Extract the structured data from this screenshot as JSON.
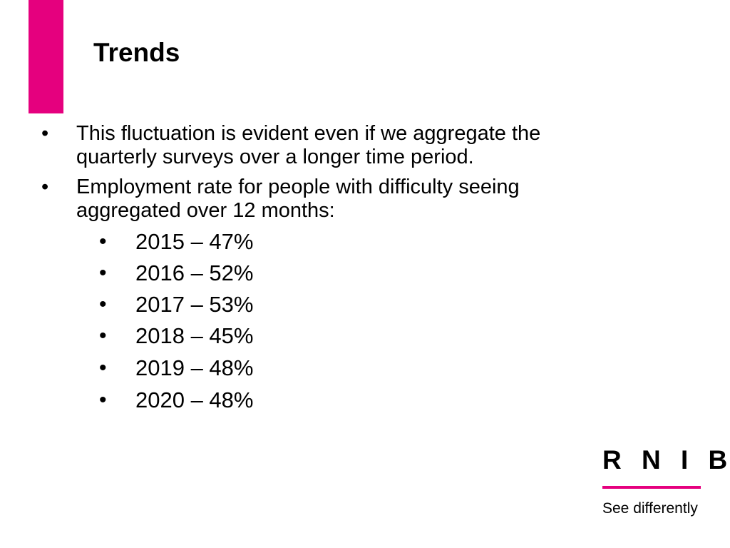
{
  "colors": {
    "accent": "#E5007E",
    "text": "#000000",
    "background": "#FFFFFF"
  },
  "slide": {
    "title": "Trends",
    "bullets": [
      {
        "marker": "•",
        "text_lines": [
          "This fluctuation is evident even if we aggregate the",
          "quarterly surveys over a longer time period."
        ]
      },
      {
        "marker": "•",
        "text_lines": [
          "Employment rate for people with difficulty seeing",
          "aggregated over 12 months:"
        ]
      }
    ],
    "sub_bullets": [
      {
        "marker": "•",
        "text": "2015 – 47%"
      },
      {
        "marker": "•",
        "text": "2016 – 52%"
      },
      {
        "marker": "•",
        "text": "2017 – 53%"
      },
      {
        "marker": "•",
        "text": "2018 – 45%"
      },
      {
        "marker": "•",
        "text": "2019 – 48%"
      },
      {
        "marker": "•",
        "text": "2020 – 48%"
      }
    ]
  },
  "logo": {
    "name": "R N I B",
    "tagline": "See differently"
  }
}
